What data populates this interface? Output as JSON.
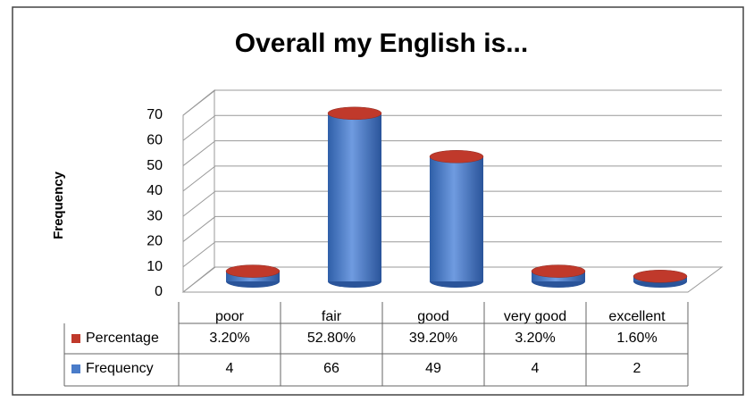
{
  "chart_data": {
    "type": "bar3d",
    "title": "Overall my English is...",
    "y_label": "Frequency",
    "categories": [
      "poor",
      "fair",
      "good",
      "very good",
      "excellent"
    ],
    "series": [
      {
        "name": "Percentage",
        "color": "#c0392b",
        "values": [
          0.032,
          0.528,
          0.392,
          0.032,
          0.016
        ],
        "value_labels": [
          "3.20%",
          "52.80%",
          "39.20%",
          "3.20%",
          "1.60%"
        ]
      },
      {
        "name": "Frequency",
        "color": "#4a7cc9",
        "values": [
          4,
          66,
          49,
          4,
          2
        ]
      }
    ],
    "ylim": [
      0,
      70
    ],
    "yticks": [
      0,
      10,
      20,
      30,
      40,
      50,
      60,
      70
    ],
    "grid": true
  }
}
